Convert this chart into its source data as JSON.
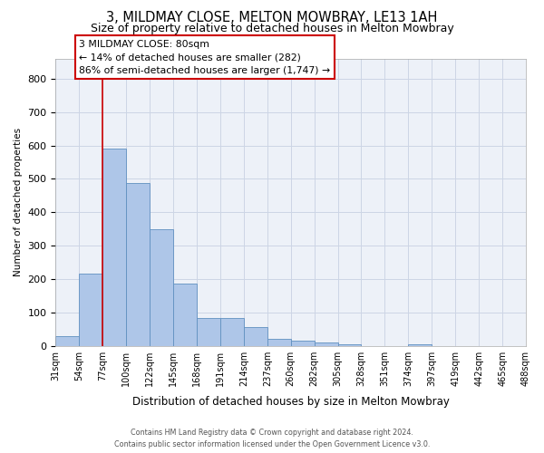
{
  "title": "3, MILDMAY CLOSE, MELTON MOWBRAY, LE13 1AH",
  "subtitle": "Size of property relative to detached houses in Melton Mowbray",
  "xlabel": "Distribution of detached houses by size in Melton Mowbray",
  "ylabel": "Number of detached properties",
  "bar_values": [
    30,
    215,
    590,
    487,
    350,
    185,
    83,
    83,
    57,
    20,
    15,
    10,
    5,
    0,
    0,
    5,
    0,
    0,
    0,
    0
  ],
  "tick_labels": [
    "31sqm",
    "54sqm",
    "77sqm",
    "100sqm",
    "122sqm",
    "145sqm",
    "168sqm",
    "191sqm",
    "214sqm",
    "237sqm",
    "260sqm",
    "282sqm",
    "305sqm",
    "328sqm",
    "351sqm",
    "374sqm",
    "397sqm",
    "419sqm",
    "442sqm",
    "465sqm",
    "488sqm"
  ],
  "bar_color": "#aec6e8",
  "bar_edge_color": "#6090c0",
  "grid_color": "#ccd5e5",
  "bg_color": "#edf1f8",
  "vline_color": "#cc0000",
  "vline_x": 1.5,
  "annotation_text": "3 MILDMAY CLOSE: 80sqm\n← 14% of detached houses are smaller (282)\n86% of semi-detached houses are larger (1,747) →",
  "footer_line1": "Contains HM Land Registry data © Crown copyright and database right 2024.",
  "footer_line2": "Contains public sector information licensed under the Open Government Licence v3.0.",
  "ylim_max": 860,
  "yticks": [
    0,
    100,
    200,
    300,
    400,
    500,
    600,
    700,
    800
  ]
}
